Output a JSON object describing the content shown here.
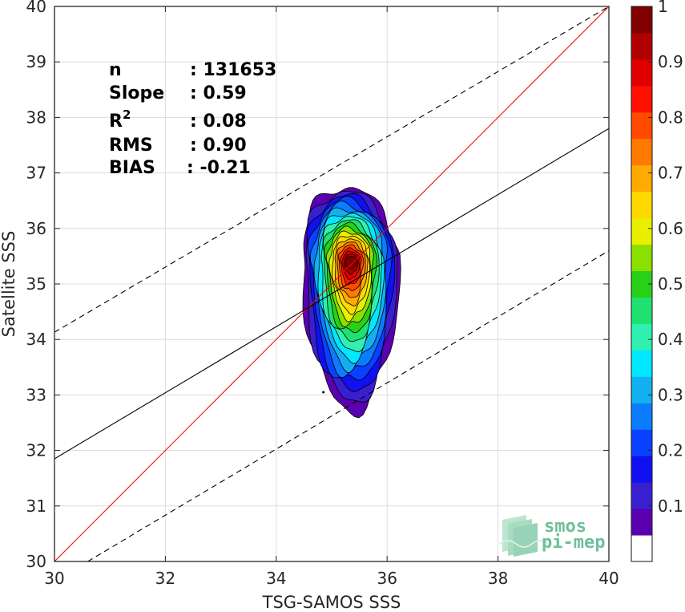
{
  "chart_data": {
    "type": "contour",
    "xlabel": "TSG-SAMOS SSS",
    "ylabel": "Satellite SSS",
    "xlim": [
      30,
      40
    ],
    "ylim": [
      30,
      40
    ],
    "xticks": [
      30,
      32,
      34,
      36,
      38,
      40
    ],
    "yticks": [
      30,
      31,
      32,
      33,
      34,
      35,
      36,
      37,
      38,
      39,
      40
    ],
    "grid": true,
    "stats": {
      "n": {
        "label": "n",
        "value": ": 131653"
      },
      "slope": {
        "label": "Slope",
        "value": ": 0.59"
      },
      "r2": {
        "label": "R",
        "sup": "2",
        "value": ": 0.08"
      },
      "rms": {
        "label": "RMS",
        "value": ": 0.90"
      },
      "bias": {
        "label": "BIAS",
        "value": ": -0.21"
      }
    },
    "lines": {
      "one_to_one": {
        "color": "#ff0000",
        "points": [
          [
            30,
            30
          ],
          [
            40,
            40
          ]
        ]
      },
      "regression": {
        "color": "#000000",
        "points": [
          [
            30,
            31.85
          ],
          [
            40,
            37.8
          ]
        ]
      },
      "upper_bound": {
        "color": "#000000",
        "dash": true,
        "points": [
          [
            30,
            34.13
          ],
          [
            40,
            40.0
          ]
        ]
      },
      "lower_bound": {
        "color": "#000000",
        "dash": true,
        "points": [
          [
            30.6,
            30.0
          ],
          [
            40,
            35.6
          ]
        ]
      }
    },
    "density_peak": {
      "x": 35.35,
      "y": 35.4
    },
    "colorbar": {
      "range": [
        0,
        1
      ],
      "ticks": [
        0.1,
        0.2,
        0.3,
        0.4,
        0.5,
        0.6,
        0.7,
        0.8,
        0.9,
        1
      ],
      "tick_labels": [
        "0.1",
        "0.2",
        "0.3",
        "0.4",
        "0.5",
        "0.6",
        "0.7",
        "0.8",
        "0.9",
        "1"
      ],
      "colors": [
        "#ffffff",
        "#5a00b0",
        "#3a1fd0",
        "#1010f0",
        "#0a40ff",
        "#0c7cff",
        "#12b0f0",
        "#00e8ff",
        "#30f0b0",
        "#20e070",
        "#28d018",
        "#8ae000",
        "#e8f000",
        "#ffd800",
        "#ffaa00",
        "#ff7a00",
        "#ff4a00",
        "#ff1000",
        "#e00000",
        "#b00000",
        "#800000"
      ]
    }
  },
  "logo": {
    "line1": "smos",
    "line2": "pi-mep"
  }
}
